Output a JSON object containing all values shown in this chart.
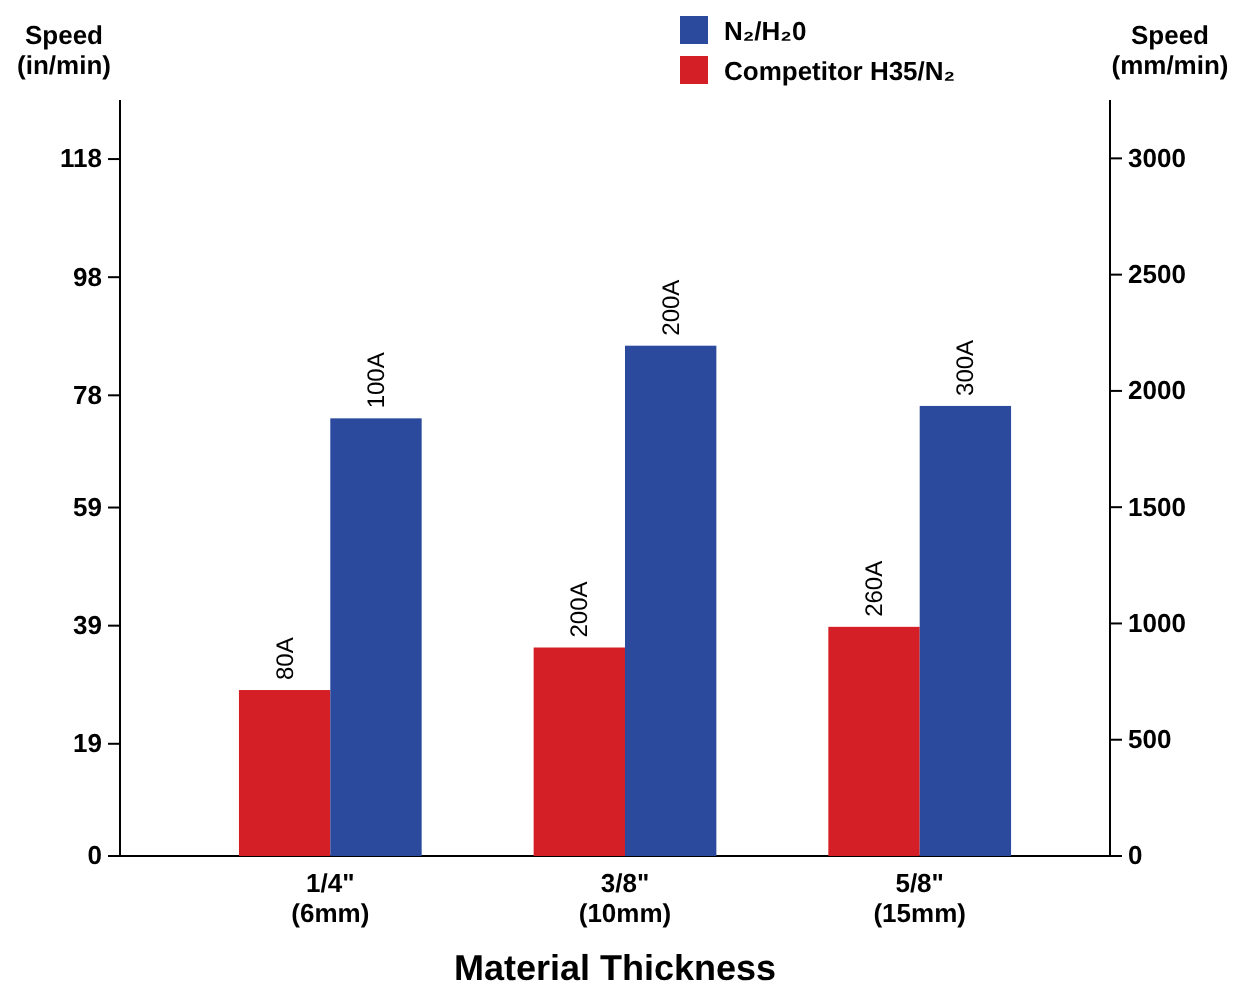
{
  "chart_data": {
    "type": "bar",
    "xlabel": "Material Thickness",
    "ylabel": "Speed\n(in/min)",
    "y2label": "Speed\n(mm/min)",
    "categories": [
      "1/4\"\n(6mm)",
      "3/8\"\n(10mm)",
      "5/8\"\n(15mm)"
    ],
    "series": [
      {
        "name": "Competitor H35/N₂",
        "color": "#d41f26",
        "values": [
          28.1,
          35.3,
          38.8
        ]
      },
      {
        "name": "N₂/H₂0",
        "color": "#2b4a9e",
        "values": [
          74.1,
          86.4,
          76.2
        ]
      }
    ],
    "annotations": [
      {
        "text": "80A",
        "x": "1/4\"\n(6mm)",
        "y": 28.1
      },
      {
        "text": "100A",
        "x": "1/4\"\n(6mm)",
        "y": 74.1
      },
      {
        "text": "200A",
        "x": "3/8\"\n(10mm)",
        "y": 35.3
      },
      {
        "text": "200A",
        "x": "3/8\"\n(10mm)",
        "y": 86.4
      },
      {
        "text": "260A",
        "x": "5/8\"\n(15mm)",
        "y": 38.8
      },
      {
        "text": "300A",
        "x": "5/8\"\n(15mm)",
        "y": 76.2
      }
    ],
    "ylim": [
      0,
      128
    ],
    "yticks": [
      0,
      19,
      39,
      59,
      78,
      98,
      118
    ],
    "y2lim": [
      0,
      3251
    ],
    "y2ticks": [
      0,
      500,
      1000,
      1500,
      2000,
      2500,
      3000
    ],
    "legend": "top right",
    "grid": false
  }
}
